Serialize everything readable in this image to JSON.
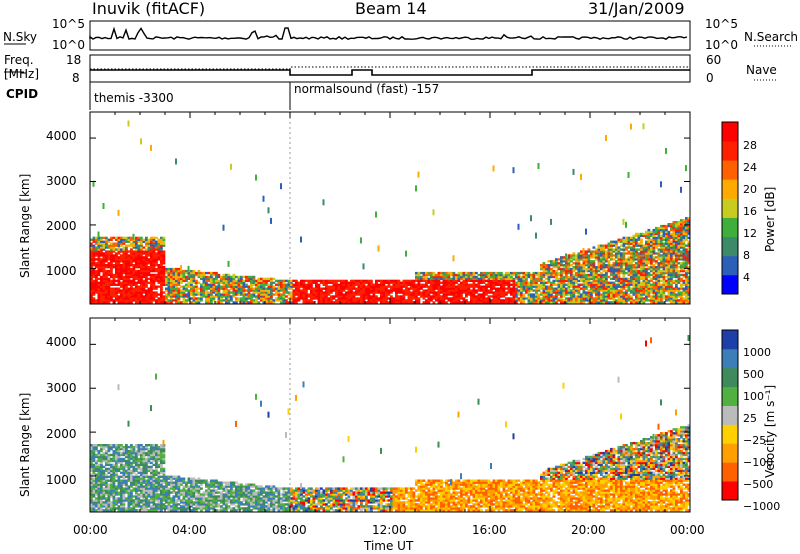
{
  "header": {
    "station": "Inuvik (fitACF)",
    "beam": "Beam 14",
    "date": "31/Jan/2009"
  },
  "top_panels": {
    "nsky_label": "N.Sky",
    "nsky_ticks": [
      "10^5",
      "10^0"
    ],
    "nsearch_label": "N.Search",
    "nsearch_ticks": [
      "10^5",
      "10^0"
    ],
    "freq_label": "Freq.",
    "freq_unit": "[MHz]",
    "freq_ticks": [
      "18",
      "8"
    ],
    "nave_label": "Nave",
    "nave_ticks": [
      "60",
      "0"
    ],
    "cpid_label": "CPID",
    "cpid_segments": [
      {
        "name": "themis -3300",
        "start_hour": 0
      },
      {
        "name": "normalsound (fast) -157",
        "start_hour": 8
      }
    ]
  },
  "axes": {
    "xlabel": "Time UT",
    "x_ticks": [
      "00:00",
      "04:00",
      "08:00",
      "12:00",
      "16:00",
      "20:00",
      "00:00"
    ],
    "ylabel": "Slant Range [km]",
    "y_ticks": [
      "1000",
      "2000",
      "3000",
      "4000"
    ]
  },
  "colors": {
    "power": [
      "#0000ff",
      "#2c5fb8",
      "#3d8a6a",
      "#3fae3a",
      "#c8cc20",
      "#ffaa00",
      "#ff6000",
      "#ff2000",
      "#ff0000"
    ],
    "velocity": [
      "#1f3fa8",
      "#3c7fb8",
      "#3f8a5a",
      "#50b040",
      "#bbbbbb",
      "#ffd000",
      "#ffa000",
      "#ff6000",
      "#ff0000"
    ]
  },
  "chart_data": [
    {
      "type": "heatmap",
      "name": "power",
      "colorbar_label": "Power [dB]",
      "colorbar_ticks": [
        "28",
        "24",
        "20",
        "16",
        "12",
        "8",
        "4"
      ],
      "x_range_hours": [
        0,
        24
      ],
      "y_range_km": [
        180,
        4600
      ]
    },
    {
      "type": "heatmap",
      "name": "velocity",
      "colorbar_label": "Velocity [m s⁻¹]",
      "colorbar_ticks": [
        "1000",
        "500",
        "100",
        "25",
        "−25",
        "−100",
        "−500",
        "−1000"
      ],
      "x_range_hours": [
        0,
        24
      ],
      "y_range_km": [
        180,
        4600
      ]
    }
  ]
}
